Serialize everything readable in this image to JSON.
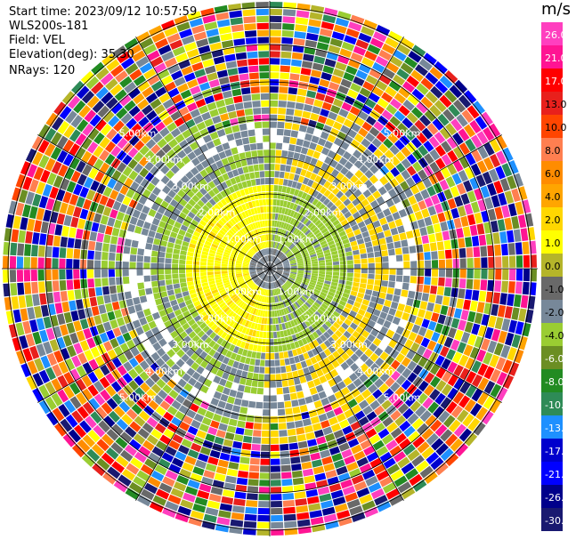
{
  "header": {
    "start_time": "Start time: 2023/09/12 10:57:59",
    "instrument": "WLS200s-181",
    "field": "Field: VEL",
    "elevation": "Elevation(deg): 35.30",
    "nrays": "NRays: 120"
  },
  "range_rings": {
    "labels": [
      "1.00km",
      "2.00km",
      "3.00km",
      "4.00km",
      "5.00km"
    ]
  },
  "colorbar": {
    "unit": "m/s",
    "ticks": [
      "26.0",
      "21.0",
      "17.0",
      "13.0",
      "10.0",
      "8.0",
      "6.0",
      "4.0",
      "2.0",
      "1.0",
      "0.0",
      "-1.0",
      "-2.0",
      "-4.0",
      "-6.0",
      "-8.0",
      "-10.0",
      "-13.0",
      "-17.0",
      "-21.0",
      "-26.0",
      "-30.0"
    ],
    "colors": [
      "#ff3fbf",
      "#ff1493",
      "#ff0000",
      "#e8201c",
      "#ff4500",
      "#ff7f50",
      "#ff8c00",
      "#ffa500",
      "#ffd700",
      "#ffff00",
      "#b5b52a",
      "#696969",
      "#778899",
      "#9acd32",
      "#6b8e23",
      "#228b22",
      "#2e8b57",
      "#1e90ff",
      "#0000cd",
      "#0000ff",
      "#00008b",
      "#191970"
    ]
  }
}
